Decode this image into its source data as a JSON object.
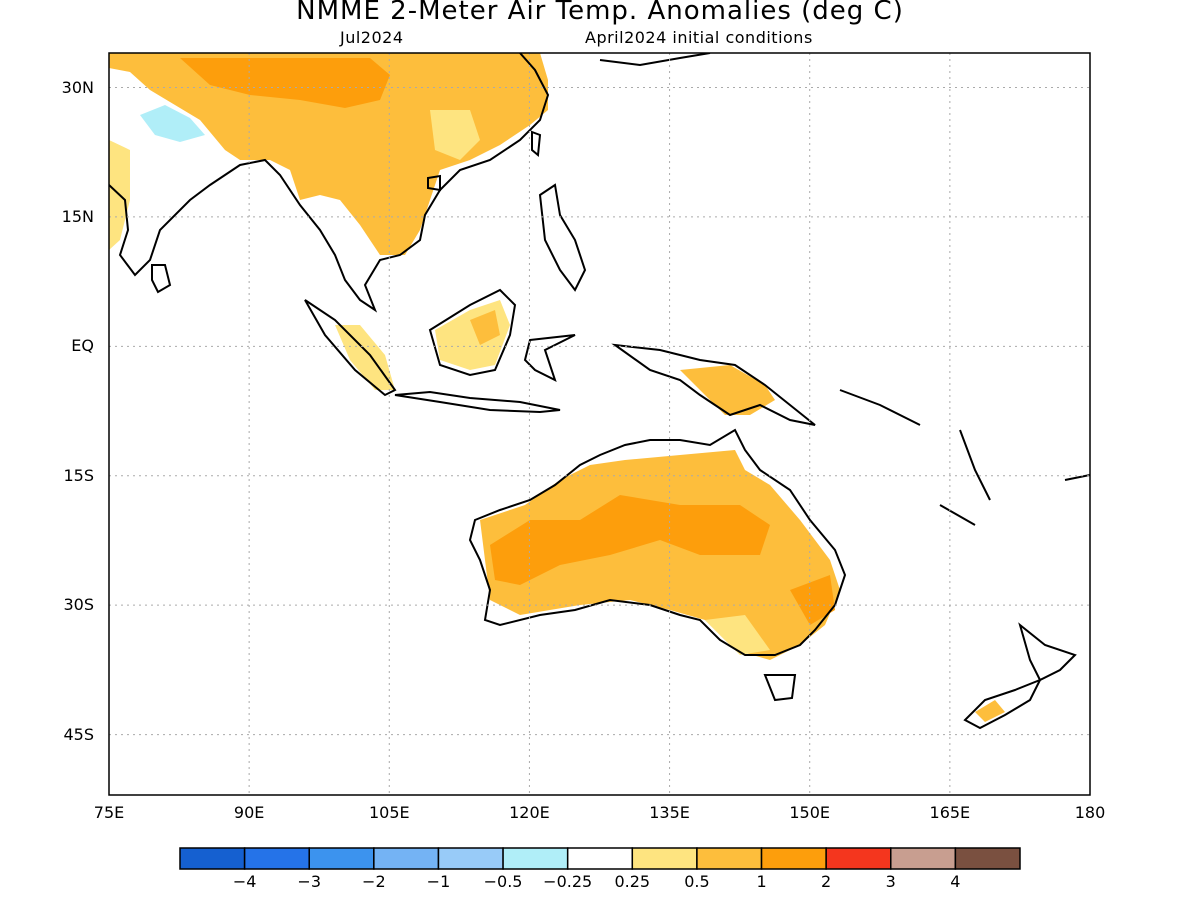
{
  "title": "NMME 2-Meter Air Temp. Anomalies (deg C)",
  "subtitle_left": "Jul2024",
  "subtitle_right": "April2024 initial conditions",
  "map_extent": {
    "lon_min": 75,
    "lon_max": 180,
    "lat_min": -52,
    "lat_max": 34
  },
  "lat_ticks": [
    {
      "lat": 30,
      "label": "30N"
    },
    {
      "lat": 15,
      "label": "15N"
    },
    {
      "lat": 0,
      "label": "EQ"
    },
    {
      "lat": -15,
      "label": "15S"
    },
    {
      "lat": -30,
      "label": "30S"
    },
    {
      "lat": -45,
      "label": "45S"
    }
  ],
  "lon_ticks": [
    {
      "lon": 75,
      "label": "75E"
    },
    {
      "lon": 90,
      "label": "90E"
    },
    {
      "lon": 105,
      "label": "105E"
    },
    {
      "lon": 120,
      "label": "120E"
    },
    {
      "lon": 135,
      "label": "135E"
    },
    {
      "lon": 150,
      "label": "150E"
    },
    {
      "lon": 165,
      "label": "165E"
    },
    {
      "lon": 180,
      "label": "180"
    }
  ],
  "colorbar": {
    "colors": [
      "#1560d0",
      "#2573e8",
      "#3c93ee",
      "#74b3f4",
      "#98cbf8",
      "#b0eef8",
      "#ffffff",
      "#fee480",
      "#fdbe3c",
      "#fd9e0c",
      "#f4361e",
      "#c89e90",
      "#7a5040"
    ],
    "labels": [
      "-4",
      "-3",
      "-2",
      "-1",
      "-0.5",
      "-0.25",
      "0.25",
      "0.5",
      "1",
      "2",
      "3",
      "4"
    ]
  },
  "anomaly_colors": {
    "light_blue": "#b0eef8",
    "light_yellow": "#fee480",
    "light_orange": "#fdbe3c",
    "orange": "#fd9e0c"
  }
}
